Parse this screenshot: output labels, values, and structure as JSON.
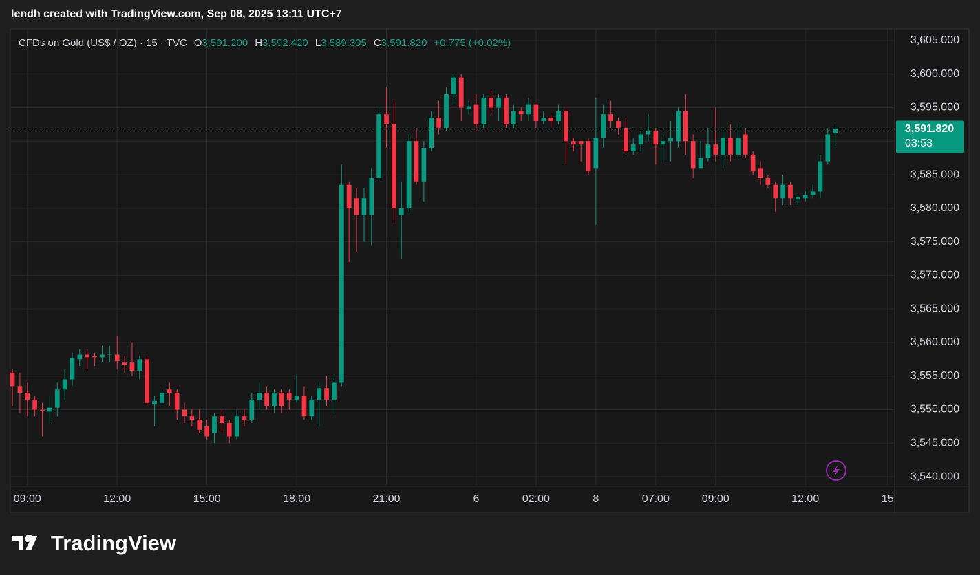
{
  "header": {
    "attribution": "lendh created with TradingView.com, Sep 08, 2025 13:11 UTC+7"
  },
  "footer": {
    "brand": "TradingView"
  },
  "chart_data": {
    "type": "candlestick",
    "symbol": "CFDs on Gold (US$ / OZ) · 15 · TVC",
    "legend": [
      {
        "label": "O",
        "value": "3,591.200"
      },
      {
        "label": "H",
        "value": "3,592.420"
      },
      {
        "label": "L",
        "value": "3,589.305"
      },
      {
        "label": "C",
        "value": "3,591.820"
      }
    ],
    "change": "+0.775 (+0.02%)",
    "last_price_label": "3,591.820",
    "countdown": "03:53",
    "up_color": "#089981",
    "down_color": "#f23645",
    "open": [
      3555.5,
      3553.5,
      3552.5,
      3551.5,
      3550,
      3549.7,
      3550.3,
      3553,
      3554.5,
      3557.5,
      3558.2,
      3558,
      3557.8,
      3558.2,
      3558.2,
      3557,
      3557,
      3555.8,
      3557.5,
      3550.8,
      3551,
      3553,
      3552.5,
      3550,
      3549,
      3548.5,
      3547.5,
      3546.5,
      3549,
      3548,
      3546,
      3549,
      3548.5,
      3551.5,
      3552.5,
      3550.5,
      3552.5,
      3552.5,
      3551.5,
      3552,
      3549,
      3551.5,
      3553.2,
      3551.5,
      3554,
      3583.5,
      3581.5,
      3579,
      3579,
      3584.5,
      3594,
      3592.5,
      3579,
      3580,
      3590,
      3584,
      3589,
      3593.5,
      3592,
      3597,
      3599.5,
      3594.8,
      3595.5,
      3592.5,
      3596.5,
      3595,
      3596.5,
      3592.5,
      3594.5,
      3594,
      3595.5,
      3593,
      3593.5,
      3593,
      3594.5,
      3590,
      3590,
      3590,
      3586,
      3590.5,
      3594,
      3593,
      3592,
      3588.5,
      3589.5,
      3591,
      3591.5,
      3589.5,
      3590,
      3590,
      3594.5,
      3590,
      3586,
      3587.5,
      3589.5,
      3588,
      3590.5,
      3588,
      3591,
      3588,
      3586,
      3584.5,
      3583.5,
      3581.5,
      3583.5,
      3581.3,
      3581.5,
      3582,
      3582.5,
      3587,
      3591.2
    ],
    "high": [
      3556,
      3555.5,
      3554,
      3552,
      3551,
      3552,
      3554,
      3556,
      3558.5,
      3559,
      3559,
      3558.5,
      3559.5,
      3559.5,
      3561,
      3558,
      3560,
      3558,
      3558,
      3552,
      3553,
      3554,
      3553,
      3551,
      3550,
      3550,
      3548.5,
      3549.5,
      3550,
      3548.5,
      3550,
      3550,
      3552.5,
      3554,
      3553.5,
      3553,
      3553,
      3553,
      3555,
      3553.5,
      3552,
      3554,
      3555,
      3555,
      3586.5,
      3584,
      3583,
      3583,
      3586,
      3595,
      3598,
      3596,
      3584,
      3591,
      3592,
      3590,
      3594.5,
      3596,
      3598,
      3600,
      3600,
      3596,
      3597,
      3597,
      3597.5,
      3597,
      3597,
      3595.5,
      3595,
      3596.5,
      3595.5,
      3594.5,
      3594,
      3595.5,
      3595,
      3590.5,
      3590,
      3590.5,
      3596.5,
      3595.5,
      3596,
      3593.5,
      3593.5,
      3590.5,
      3591.5,
      3594,
      3592,
      3591,
      3593,
      3595,
      3597,
      3591,
      3590,
      3592,
      3595,
      3591.5,
      3592.5,
      3592.5,
      3592,
      3588.5,
      3587,
      3585,
      3584,
      3585,
      3584,
      3582,
      3582.5,
      3583.5,
      3588,
      3592,
      3592.42
    ],
    "low": [
      3550.5,
      3549.5,
      3549,
      3549,
      3546,
      3548,
      3549,
      3551.5,
      3553.5,
      3556.5,
      3556,
      3556.5,
      3557,
      3557,
      3556,
      3555.5,
      3555,
      3554.5,
      3550.5,
      3547.5,
      3550.5,
      3550.5,
      3548.5,
      3548,
      3547.5,
      3546.5,
      3545.5,
      3545,
      3546.5,
      3545,
      3545.5,
      3547.5,
      3548,
      3550,
      3550,
      3549.5,
      3549.5,
      3550,
      3551,
      3548.5,
      3548.5,
      3547.5,
      3550.5,
      3549.5,
      3553.5,
      3572,
      3573.5,
      3575,
      3574.5,
      3584,
      3589,
      3578,
      3572.5,
      3579.5,
      3583.5,
      3581,
      3588.5,
      3591,
      3591.5,
      3595.5,
      3593,
      3594,
      3591.5,
      3592,
      3594,
      3593,
      3592,
      3592,
      3593,
      3593,
      3592,
      3592.5,
      3592,
      3592.5,
      3586.5,
      3588.5,
      3587,
      3585,
      3577.5,
      3589,
      3592,
      3591,
      3588,
      3588,
      3588.5,
      3590,
      3586.5,
      3587,
      3587,
      3589,
      3588,
      3584.5,
      3586,
      3587,
      3587,
      3586,
      3587,
      3587.5,
      3587.5,
      3585,
      3583.5,
      3583,
      3579.5,
      3580.5,
      3580.5,
      3580.5,
      3581,
      3581.5,
      3581.5,
      3586.5,
      3589.305
    ],
    "close": [
      3553.5,
      3552.5,
      3551.5,
      3550,
      3549.8,
      3550.3,
      3553,
      3554.5,
      3557.7,
      3558.2,
      3557.8,
      3557.8,
      3558.2,
      3558.3,
      3557.2,
      3556.7,
      3555.8,
      3557.5,
      3551,
      3551.3,
      3552.5,
      3552.5,
      3550,
      3549,
      3548.5,
      3547,
      3546,
      3549,
      3548,
      3546,
      3549,
      3548.5,
      3551.5,
      3552.5,
      3550.5,
      3552.5,
      3550.5,
      3551.5,
      3552,
      3549,
      3551.5,
      3553.2,
      3551.5,
      3554,
      3583.5,
      3580,
      3579,
      3581.5,
      3584.5,
      3594,
      3592.5,
      3580,
      3580,
      3590,
      3584,
      3589,
      3593.5,
      3592,
      3597,
      3599.5,
      3595,
      3595.2,
      3592.5,
      3596.5,
      3595,
      3596.5,
      3592.5,
      3594.5,
      3594,
      3595.5,
      3593,
      3593.5,
      3593,
      3594.5,
      3590,
      3589.5,
      3589.5,
      3585.5,
      3590.5,
      3594,
      3593,
      3592,
      3588.5,
      3589.5,
      3591,
      3591.5,
      3589.5,
      3590,
      3590.5,
      3594.5,
      3590,
      3586,
      3587.5,
      3589.5,
      3588,
      3590.5,
      3588,
      3590.5,
      3588,
      3585.5,
      3584.5,
      3583.5,
      3581.5,
      3583.5,
      3581.5,
      3581.7,
      3582,
      3582.5,
      3587,
      3591,
      3591.82
    ],
    "xlim": [
      -0.28,
      117.94
    ],
    "xticks": [
      {
        "value": 2,
        "label": "09:00"
      },
      {
        "value": 14,
        "label": "12:00"
      },
      {
        "value": 26,
        "label": "15:00"
      },
      {
        "value": 38,
        "label": "18:00"
      },
      {
        "value": 50,
        "label": "21:00"
      },
      {
        "value": 62,
        "label": "6"
      },
      {
        "value": 70,
        "label": "02:00"
      },
      {
        "value": 78,
        "label": "8"
      },
      {
        "value": 86,
        "label": "07:00"
      },
      {
        "value": 94,
        "label": "09:00"
      },
      {
        "value": 106,
        "label": "12:00"
      },
      {
        "value": 117,
        "label": "15"
      }
    ],
    "ylim": [
      3538.57,
      3606.74
    ],
    "yticks": [
      {
        "value": 3540,
        "label": "3,540.000"
      },
      {
        "value": 3545,
        "label": "3,545.000"
      },
      {
        "value": 3550,
        "label": "3,550.000"
      },
      {
        "value": 3555,
        "label": "3,555.000"
      },
      {
        "value": 3560,
        "label": "3,560.000"
      },
      {
        "value": 3565,
        "label": "3,565.000"
      },
      {
        "value": 3570,
        "label": "3,570.000"
      },
      {
        "value": 3575,
        "label": "3,575.000"
      },
      {
        "value": 3580,
        "label": "3,580.000"
      },
      {
        "value": 3585,
        "label": "3,585.000"
      },
      {
        "value": 3590,
        "label": "3,590.000"
      },
      {
        "value": 3595,
        "label": "3,595.000"
      },
      {
        "value": 3600,
        "label": "3,600.000"
      },
      {
        "value": 3605,
        "label": "3,605.000"
      }
    ],
    "grid": true
  }
}
